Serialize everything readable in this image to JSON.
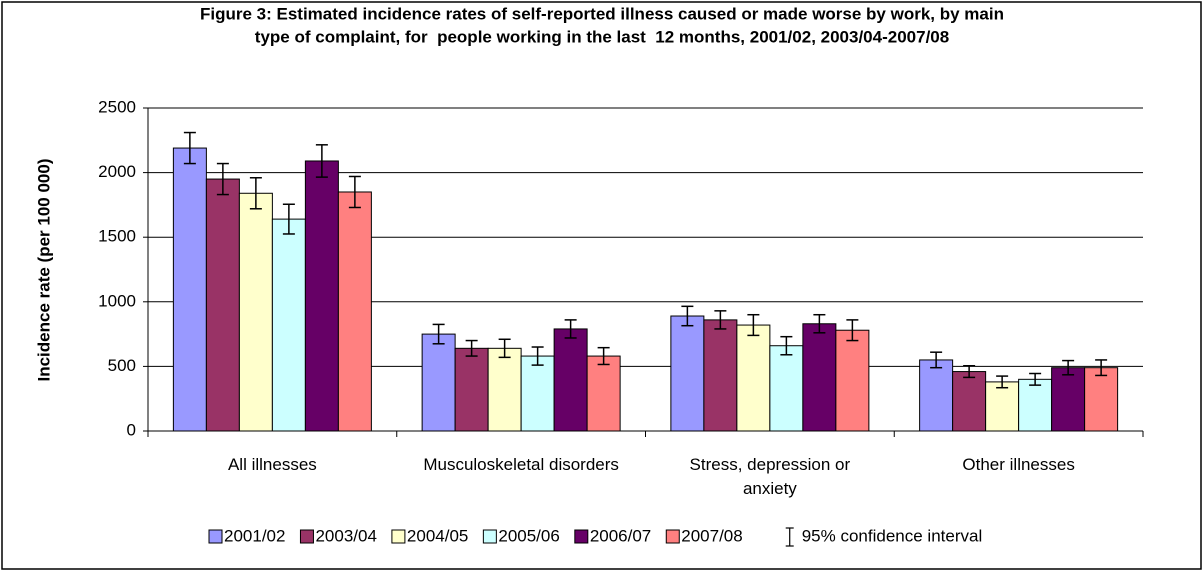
{
  "chart_data": {
    "type": "bar",
    "title": [
      "Figure 3: Estimated incidence rates of self-reported illness caused or made worse by work, by main",
      "type of complaint, for  people working in the last  12 months, 2001/02, 2003/04-2007/08"
    ],
    "y_label": "Incidence rate (per 100 000)",
    "categories": [
      "All illnesses",
      "Musculoskeletal disorders",
      "Stress, depression or anxiety",
      "Other illnesses"
    ],
    "series": [
      {
        "name": "2001/02",
        "color": "#9999ff",
        "values": [
          2190,
          750,
          890,
          550
        ],
        "errors": [
          120,
          75,
          75,
          60
        ]
      },
      {
        "name": "2003/04",
        "color": "#993366",
        "values": [
          1950,
          640,
          860,
          460
        ],
        "errors": [
          120,
          60,
          70,
          45
        ]
      },
      {
        "name": "2004/05",
        "color": "#ffffcc",
        "values": [
          1840,
          640,
          820,
          380
        ],
        "errors": [
          120,
          70,
          80,
          45
        ]
      },
      {
        "name": "2005/06",
        "color": "#ccffff",
        "values": [
          1640,
          580,
          660,
          400
        ],
        "errors": [
          115,
          70,
          70,
          45
        ]
      },
      {
        "name": "2006/07",
        "color": "#660066",
        "values": [
          2090,
          790,
          830,
          490
        ],
        "errors": [
          125,
          70,
          70,
          55
        ]
      },
      {
        "name": "2007/08",
        "color": "#ff8080",
        "values": [
          1850,
          580,
          780,
          490
        ],
        "errors": [
          120,
          65,
          80,
          60
        ]
      }
    ],
    "error_legend": "95% confidence interval",
    "ylim": [
      0,
      2500
    ],
    "yticks": [
      0,
      500,
      1000,
      1500,
      2000,
      2500
    ],
    "grid": true
  }
}
